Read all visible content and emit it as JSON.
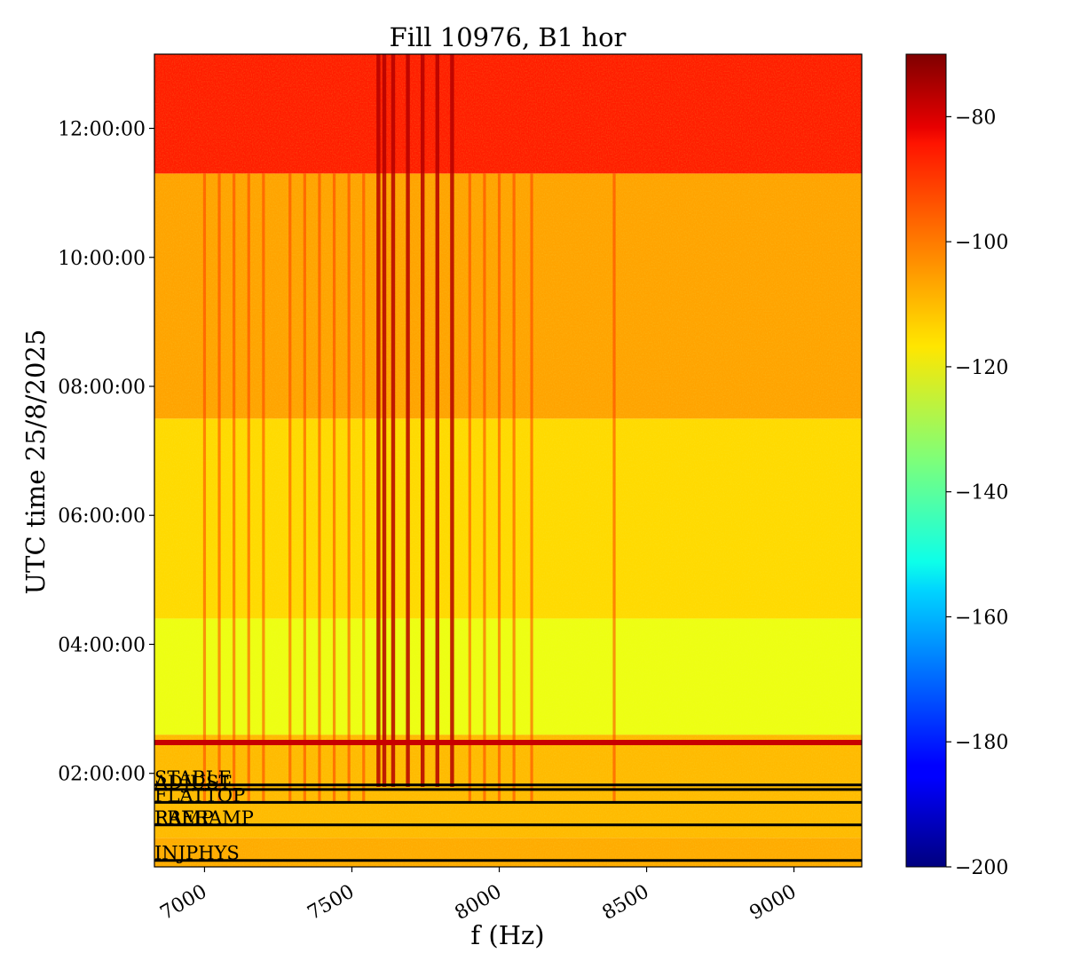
{
  "chart_data": {
    "type": "heatmap",
    "title": "Fill 10976, B1 hor",
    "xlabel": "f (Hz)",
    "ylabel": "UTC time 25/8/2025",
    "xlim": [
      6830,
      9230
    ],
    "ylim_hours": [
      0.55,
      13.15
    ],
    "x_ticks": [
      {
        "value": 7000,
        "label": "7000"
      },
      {
        "value": 7500,
        "label": "7500"
      },
      {
        "value": 8000,
        "label": "8000"
      },
      {
        "value": 8500,
        "label": "8500"
      },
      {
        "value": 9000,
        "label": "9000"
      }
    ],
    "y_ticks": [
      {
        "hours": 2,
        "label": "02:00:00"
      },
      {
        "hours": 4,
        "label": "04:00:00"
      },
      {
        "hours": 6,
        "label": "06:00:00"
      },
      {
        "hours": 8,
        "label": "08:00:00"
      },
      {
        "hours": 10,
        "label": "10:00:00"
      },
      {
        "hours": 12,
        "label": "12:00:00"
      }
    ],
    "colorbar": {
      "colormap": "jet",
      "range": [
        -200,
        -70
      ],
      "ticks": [
        {
          "value": -80,
          "label": "−80"
        },
        {
          "value": -100,
          "label": "−100"
        },
        {
          "value": -120,
          "label": "−120"
        },
        {
          "value": -140,
          "label": "−140"
        },
        {
          "value": -160,
          "label": "−160"
        },
        {
          "value": -180,
          "label": "−180"
        },
        {
          "value": -200,
          "label": "−200"
        }
      ]
    },
    "background_levels": [
      {
        "from_hours": 0.55,
        "to_hours": 1.0,
        "level": -108
      },
      {
        "from_hours": 1.0,
        "to_hours": 2.6,
        "level": -110
      },
      {
        "from_hours": 2.6,
        "to_hours": 4.4,
        "level": -121
      },
      {
        "from_hours": 4.4,
        "to_hours": 7.5,
        "level": -114
      },
      {
        "from_hours": 7.5,
        "to_hours": 11.3,
        "level": -107
      },
      {
        "from_hours": 11.3,
        "to_hours": 13.15,
        "level": -90
      }
    ],
    "spectral_lines_hz": [
      7000,
      7050,
      7100,
      7150,
      7200,
      7290,
      7340,
      7390,
      7440,
      7490,
      7540,
      7590,
      7610,
      7640,
      7690,
      7740,
      7790,
      7840,
      7900,
      7950,
      8000,
      8050,
      8110,
      8390
    ],
    "beam_mode_transitions": [
      {
        "hours": 1.82,
        "label": "STABLE"
      },
      {
        "hours": 1.75,
        "label": "ADJUST"
      },
      {
        "hours": 1.55,
        "label": "FLATTOP"
      },
      {
        "hours": 1.2,
        "label": "RAMP"
      },
      {
        "hours": 1.2,
        "label": "PRERAMP"
      },
      {
        "hours": 0.65,
        "label": "INJPHYS"
      }
    ]
  }
}
